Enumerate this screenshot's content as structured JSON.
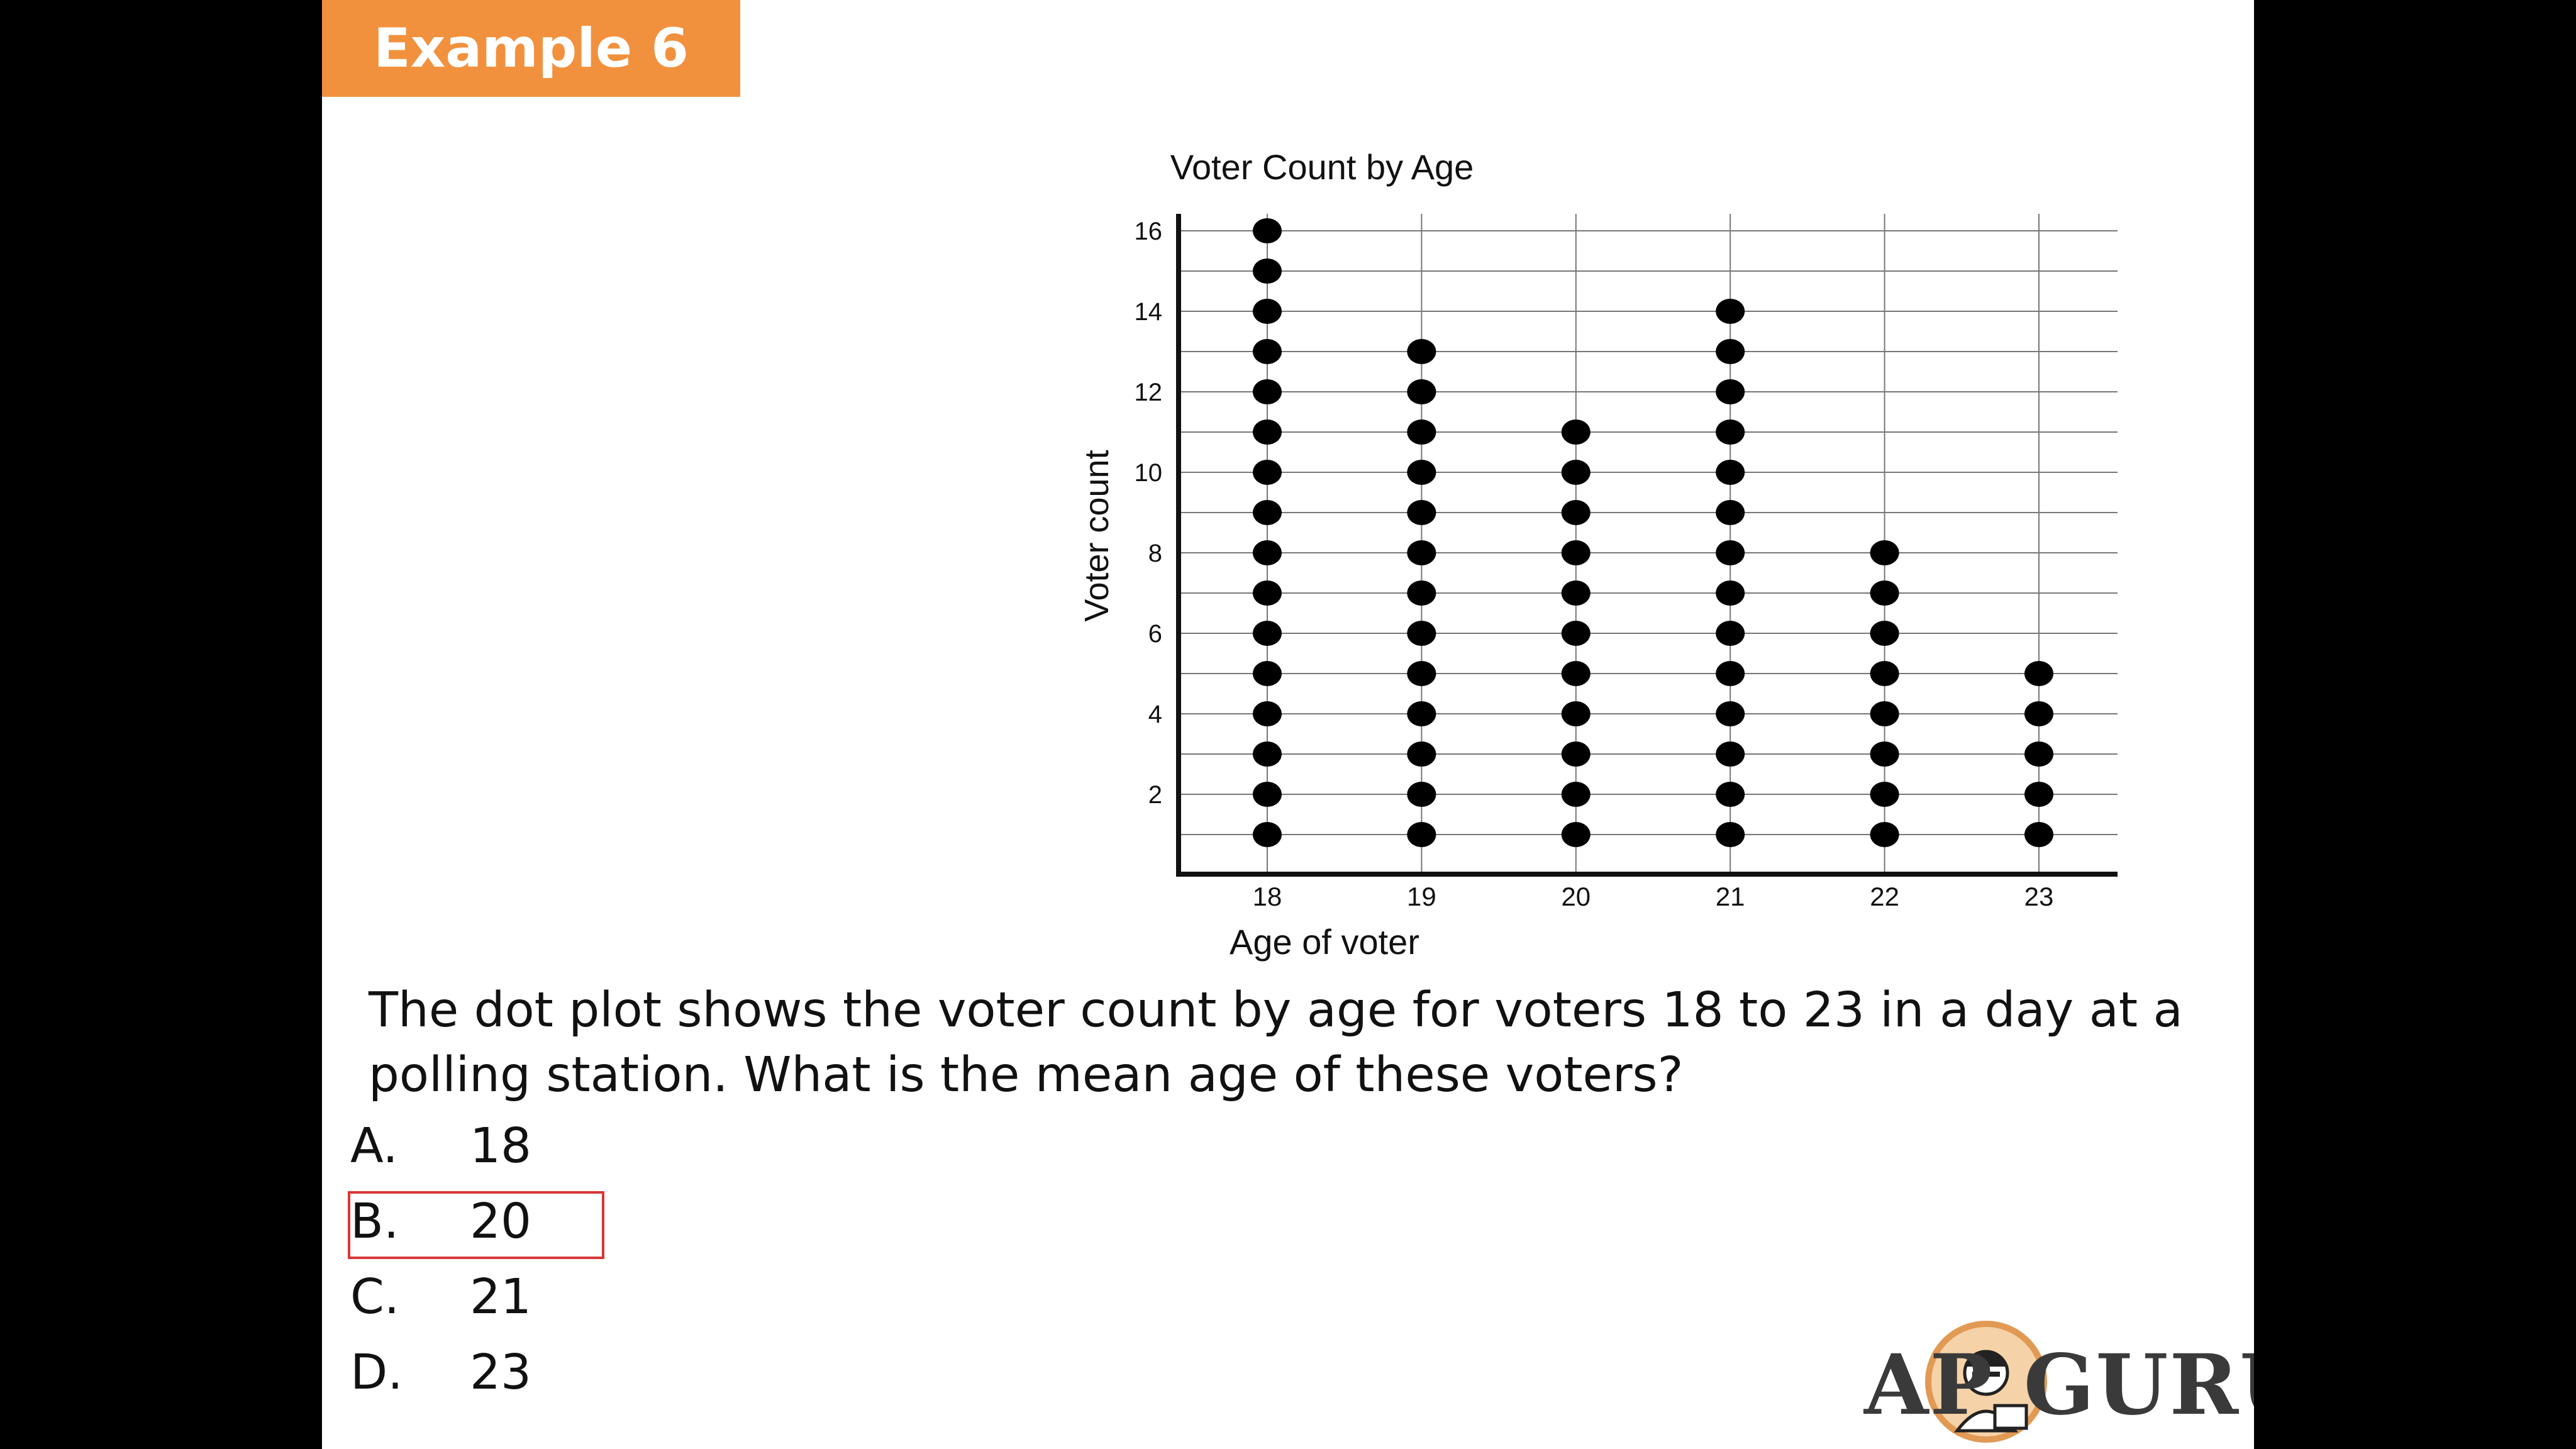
{
  "slide": {
    "badge": "Example 6",
    "question": "The dot plot shows the voter count by age for voters 18 to 23 in a day at a polling station.  What is the mean age of these voters?",
    "options": [
      {
        "letter": "A.",
        "value": "18",
        "selected": false
      },
      {
        "letter": "B.",
        "value": "20",
        "selected": true
      },
      {
        "letter": "C.",
        "value": "21",
        "selected": false
      },
      {
        "letter": "D.",
        "value": "23",
        "selected": false
      }
    ],
    "logo_text": "AP GURU"
  },
  "colors": {
    "badge": "#f2913d",
    "selection": "#d93636",
    "dot": "#000000"
  },
  "chart_data": {
    "type": "scatter",
    "title": "Voter Count by Age",
    "xlabel": "Age of voter",
    "ylabel": "Voter count",
    "categories": [
      "18",
      "19",
      "20",
      "21",
      "22",
      "23"
    ],
    "values": [
      16,
      13,
      11,
      14,
      8,
      5
    ],
    "yticks": [
      "2",
      "4",
      "6",
      "8",
      "10",
      "12",
      "14",
      "16"
    ],
    "ylim": [
      0,
      16
    ],
    "grid": true
  }
}
